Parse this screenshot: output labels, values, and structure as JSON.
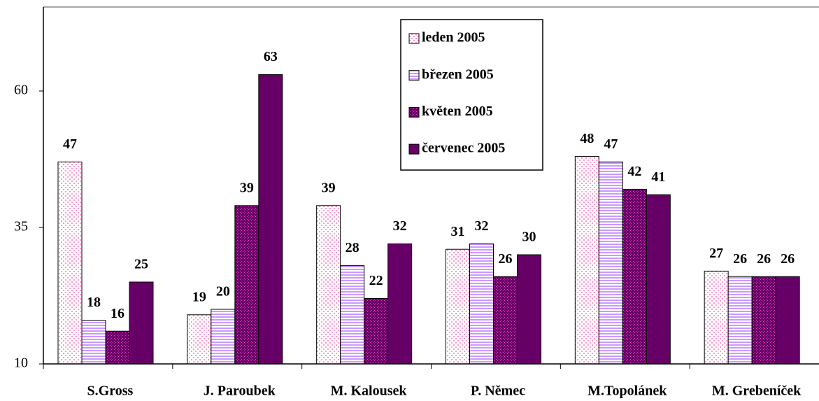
{
  "chart_data": {
    "type": "bar",
    "categories": [
      "S.Gross",
      "J. Paroubek",
      "M. Kalousek",
      "P. Němec",
      "M.Topolánek",
      "M. Grebeníček"
    ],
    "series": [
      {
        "name": "leden 2005",
        "color": "#ff99cc",
        "values": [
          47,
          19,
          39,
          31,
          48,
          27
        ]
      },
      {
        "name": "březen 2005",
        "color": "#cc99ff",
        "values": [
          18,
          20,
          28,
          32,
          47,
          26
        ]
      },
      {
        "name": "květen 2005",
        "color": "#660066",
        "values": [
          16,
          39,
          22,
          26,
          42,
          26
        ]
      },
      {
        "name": "červenec 2005",
        "color": "#660066",
        "values": [
          25,
          63,
          32,
          30,
          41,
          26
        ]
      }
    ],
    "ylim": [
      10,
      75
    ],
    "yticks": [
      10,
      35,
      60
    ]
  }
}
